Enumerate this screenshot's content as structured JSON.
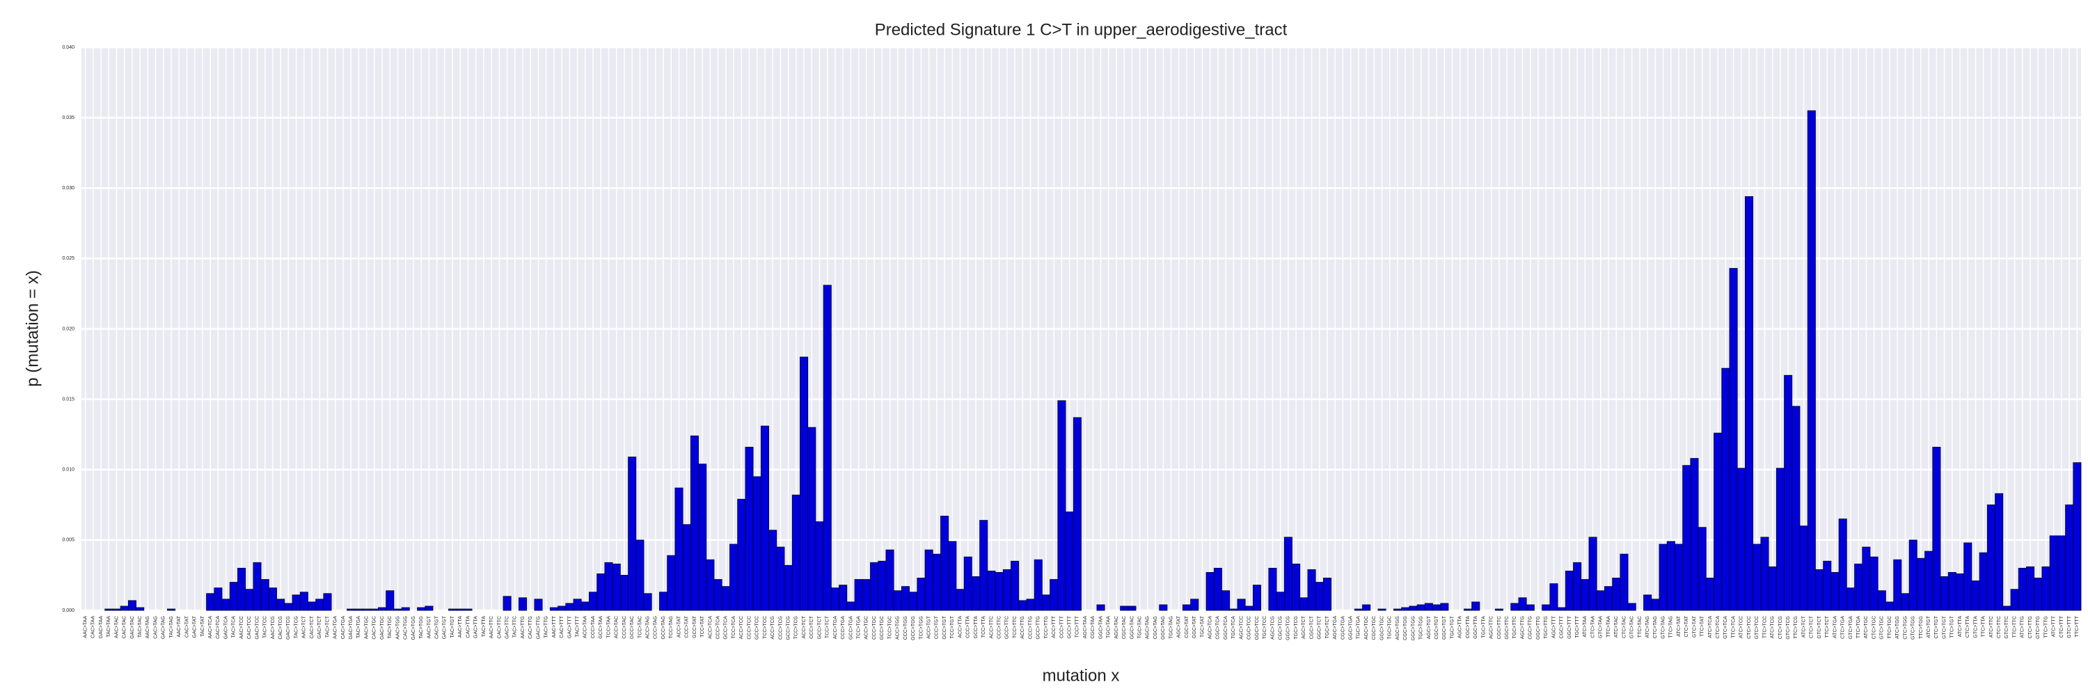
{
  "chart_data": {
    "type": "bar",
    "title": "Predicted Signature 1 C>T in upper_aerodigestive_tract",
    "xlabel": "mutation x",
    "ylabel": "p (mutation = x)",
    "color": "#0000d8",
    "grid": true,
    "ylim": [
      0,
      0.04
    ],
    "yticks": [
      {
        "value": 0,
        "label": "0.000"
      },
      {
        "value": 0.005,
        "label": "0.005"
      },
      {
        "value": 0.01,
        "label": "0.010"
      },
      {
        "value": 0.015,
        "label": "0.015"
      },
      {
        "value": 0.02,
        "label": "0.020"
      },
      {
        "value": 0.025,
        "label": "0.025"
      },
      {
        "value": 0.03,
        "label": "0.030"
      },
      {
        "value": 0.035,
        "label": "0.035"
      },
      {
        "value": 0.04,
        "label": "0.040"
      }
    ],
    "categories": [
      "AAC>TAA",
      "CAC>TAA",
      "GAC>TAA",
      "TAC>TAA",
      "AAC>TAC",
      "CAC>TAC",
      "GAC>TAC",
      "TAC>TAC",
      "AAC>TAG",
      "CAC>TAG",
      "GAC>TAG",
      "TAC>TAG",
      "AAC>TAT",
      "CAC>TAT",
      "GAC>TAT",
      "TAC>TAT",
      "AAC>TCA",
      "CAC>TCA",
      "GAC>TCA",
      "TAC>TCA",
      "AAC>TCC",
      "CAC>TCC",
      "GAC>TCC",
      "TAC>TCC",
      "AAC>TCG",
      "CAC>TCG",
      "GAC>TCG",
      "TAC>TCG",
      "AAC>TCT",
      "CAC>TCT",
      "GAC>TCT",
      "TAC>TCT",
      "AAC>TGA",
      "CAC>TGA",
      "GAC>TGA",
      "TAC>TGA",
      "AAC>TGC",
      "CAC>TGC",
      "GAC>TGC",
      "TAC>TGC",
      "AAC>TGG",
      "CAC>TGG",
      "GAC>TGG",
      "TAC>TGG",
      "AAC>TGT",
      "CAC>TGT",
      "GAC>TGT",
      "TAC>TGT",
      "AAC>TTA",
      "CAC>TTA",
      "GAC>TTA",
      "TAC>TTA",
      "AAC>TTC",
      "CAC>TTC",
      "GAC>TTC",
      "TAC>TTC",
      "AAC>TTG",
      "CAC>TTG",
      "GAC>TTG",
      "TAC>TTG",
      "AAC>TTT",
      "CAC>TTT",
      "GAC>TTT",
      "TAC>TTT",
      "ACC>TAA",
      "CCC>TAA",
      "GCC>TAA",
      "TCC>TAA",
      "ACC>TAC",
      "CCC>TAC",
      "GCC>TAC",
      "TCC>TAC",
      "ACC>TAG",
      "CCC>TAG",
      "GCC>TAG",
      "TCC>TAG",
      "ACC>TAT",
      "CCC>TAT",
      "GCC>TAT",
      "TCC>TAT",
      "ACC>TCA",
      "CCC>TCA",
      "GCC>TCA",
      "TCC>TCA",
      "ACC>TCC",
      "CCC>TCC",
      "GCC>TCC",
      "TCC>TCC",
      "ACC>TCG",
      "CCC>TCG",
      "GCC>TCG",
      "TCC>TCG",
      "ACC>TCT",
      "CCC>TCT",
      "GCC>TCT",
      "TCC>TCT",
      "ACC>TGA",
      "CCC>TGA",
      "GCC>TGA",
      "TCC>TGA",
      "ACC>TGC",
      "CCC>TGC",
      "GCC>TGC",
      "TCC>TGC",
      "ACC>TGG",
      "CCC>TGG",
      "GCC>TGG",
      "TCC>TGG",
      "ACC>TGT",
      "CCC>TGT",
      "GCC>TGT",
      "TCC>TGT",
      "ACC>TTA",
      "CCC>TTA",
      "GCC>TTA",
      "TCC>TTA",
      "ACC>TTC",
      "CCC>TTC",
      "GCC>TTC",
      "TCC>TTC",
      "ACC>TTG",
      "CCC>TTG",
      "GCC>TTG",
      "TCC>TTG",
      "ACC>TTT",
      "CCC>TTT",
      "GCC>TTT",
      "TCC>TTT",
      "AGC>TAA",
      "CGC>TAA",
      "GGC>TAA",
      "TGC>TAA",
      "AGC>TAC",
      "CGC>TAC",
      "GGC>TAC",
      "TGC>TAC",
      "AGC>TAG",
      "CGC>TAG",
      "GGC>TAG",
      "TGC>TAG",
      "AGC>TAT",
      "CGC>TAT",
      "GGC>TAT",
      "TGC>TAT",
      "AGC>TCA",
      "CGC>TCA",
      "GGC>TCA",
      "TGC>TCA",
      "AGC>TCC",
      "CGC>TCC",
      "GGC>TCC",
      "TGC>TCC",
      "AGC>TCG",
      "CGC>TCG",
      "GGC>TCG",
      "TGC>TCG",
      "AGC>TCT",
      "CGC>TCT",
      "GGC>TCT",
      "TGC>TCT",
      "AGC>TGA",
      "CGC>TGA",
      "GGC>TGA",
      "TGC>TGA",
      "AGC>TGC",
      "CGC>TGC",
      "GGC>TGC",
      "TGC>TGC",
      "AGC>TGG",
      "CGC>TGG",
      "GGC>TGG",
      "TGC>TGG",
      "AGC>TGT",
      "CGC>TGT",
      "GGC>TGT",
      "TGC>TGT",
      "AGC>TTA",
      "CGC>TTA",
      "GGC>TTA",
      "TGC>TTA",
      "AGC>TTC",
      "CGC>TTC",
      "GGC>TTC",
      "TGC>TTC",
      "AGC>TTG",
      "CGC>TTG",
      "GGC>TTG",
      "TGC>TTG",
      "AGC>TTT",
      "CGC>TTT",
      "GGC>TTT",
      "TGC>TTT",
      "ATC>TAA",
      "CTC>TAA",
      "GTC>TAA",
      "TTC>TAA",
      "ATC>TAC",
      "CTC>TAC",
      "GTC>TAC",
      "TTC>TAC",
      "ATC>TAG",
      "CTC>TAG",
      "GTC>TAG",
      "TTC>TAG",
      "ATC>TAT",
      "CTC>TAT",
      "GTC>TAT",
      "TTC>TAT",
      "ATC>TCA",
      "CTC>TCA",
      "GTC>TCA",
      "TTC>TCA",
      "ATC>TCC",
      "CTC>TCC",
      "GTC>TCC",
      "TTC>TCC",
      "ATC>TCG",
      "CTC>TCG",
      "GTC>TCG",
      "TTC>TCG",
      "ATC>TCT",
      "CTC>TCT",
      "GTC>TCT",
      "TTC>TCT",
      "ATC>TGA",
      "CTC>TGA",
      "GTC>TGA",
      "TTC>TGA",
      "ATC>TGC",
      "CTC>TGC",
      "GTC>TGC",
      "TTC>TGC",
      "ATC>TGG",
      "CTC>TGG",
      "GTC>TGG",
      "TTC>TGG",
      "ATC>TGT",
      "CTC>TGT",
      "GTC>TGT",
      "TTC>TGT",
      "ATC>TTA",
      "CTC>TTA",
      "GTC>TTA",
      "TTC>TTA",
      "ATC>TTC",
      "CTC>TTC",
      "GTC>TTC",
      "TTC>TTC",
      "ATC>TTG",
      "CTC>TTG",
      "GTC>TTG",
      "TTC>TTG",
      "ATC>TTT",
      "CTC>TTT",
      "GTC>TTT",
      "TTC>TTT"
    ],
    "values": [
      0,
      0,
      0,
      0.0001,
      0.0001,
      0.0003,
      0.0007,
      0.0002,
      0,
      0,
      0,
      0.0001,
      0,
      0,
      0,
      0,
      0.0012,
      0.0016,
      0.0008,
      0.002,
      0.003,
      0.0015,
      0.0034,
      0.0022,
      0.0016,
      0.0008,
      0.0005,
      0.0011,
      0.0013,
      0.0006,
      0.0008,
      0.0012,
      0,
      0,
      0.0001,
      0.0001,
      0.0001,
      0.0001,
      0.0002,
      0.0014,
      0.0001,
      0.0002,
      0,
      0.0002,
      0.0003,
      0,
      0,
      0.0001,
      0.0001,
      0.0001,
      0,
      0,
      0,
      0,
      0.001,
      0,
      0.0009,
      0,
      0.0008,
      0,
      0.0002,
      0.0003,
      0.0005,
      0.0008,
      0.0006,
      0.0013,
      0.0026,
      0.0034,
      0.0033,
      0.0025,
      0.0109,
      0.005,
      0.0012,
      0,
      0.0013,
      0.0039,
      0.0087,
      0.0061,
      0.0124,
      0.0104,
      0.0036,
      0.0022,
      0.0017,
      0.0047,
      0.0079,
      0.0116,
      0.0095,
      0.0131,
      0.0057,
      0.0045,
      0.0032,
      0.0082,
      0.018,
      0.013,
      0.0063,
      0.0231,
      0.0016,
      0.0018,
      0.0006,
      0.0022,
      0.0022,
      0.0034,
      0.0035,
      0.0043,
      0.0014,
      0.0017,
      0.0013,
      0.0023,
      0.0043,
      0.004,
      0.0067,
      0.0049,
      0.0015,
      0.0038,
      0.0024,
      0.0064,
      0.0028,
      0.0027,
      0.0029,
      0.0035,
      0.0007,
      0.0008,
      0.0036,
      0.0011,
      0.0022,
      0.0149,
      0.007,
      0.0137,
      0,
      0,
      0.0004,
      0,
      0,
      0.0003,
      0.0003,
      0,
      0,
      0,
      0.0004,
      0,
      0,
      0.0004,
      0.0008,
      0,
      0.0027,
      0.003,
      0.0014,
      0.0001,
      0.0008,
      0.0003,
      0.0018,
      0,
      0.003,
      0.0013,
      0.0052,
      0.0033,
      0.0009,
      0.0029,
      0.002,
      0.0023,
      0,
      0,
      0,
      0.0001,
      0.0004,
      0,
      0.0001,
      0,
      0.0001,
      0.0002,
      0.0003,
      0.0004,
      0.0005,
      0.0004,
      0.0005,
      0,
      0,
      0.0001,
      0.0006,
      0,
      0,
      0.0001,
      0,
      0.0005,
      0.0009,
      0.0004,
      0,
      0.0004,
      0.0019,
      0.0002,
      0.0028,
      0.0034,
      0.0022,
      0.0052,
      0.0014,
      0.0017,
      0.0023,
      0.004,
      0.0005,
      0,
      0.0011,
      0.0008,
      0.0047,
      0.0049,
      0.0047,
      0.0103,
      0.0108,
      0.0059,
      0.0023,
      0.0126,
      0.0172,
      0.0243,
      0.0101,
      0.0294,
      0.0047,
      0.0052,
      0.0031,
      0.0101,
      0.0167,
      0.0145,
      0.006,
      0.0355,
      0.0029,
      0.0035,
      0.0027,
      0.0065,
      0.0016,
      0.0033,
      0.0045,
      0.0038,
      0.0014,
      0.0006,
      0.0036,
      0.0012,
      0.005,
      0.0037,
      0.0042,
      0.0116,
      0.0024,
      0.0027,
      0.0026,
      0.0048,
      0.0021,
      0.0041,
      0.0075,
      0.0083,
      0.0003,
      0.0015,
      0.003,
      0.0031,
      0.0023,
      0.0031,
      0.0053,
      0.0053,
      0.0075,
      0.0105
    ]
  }
}
